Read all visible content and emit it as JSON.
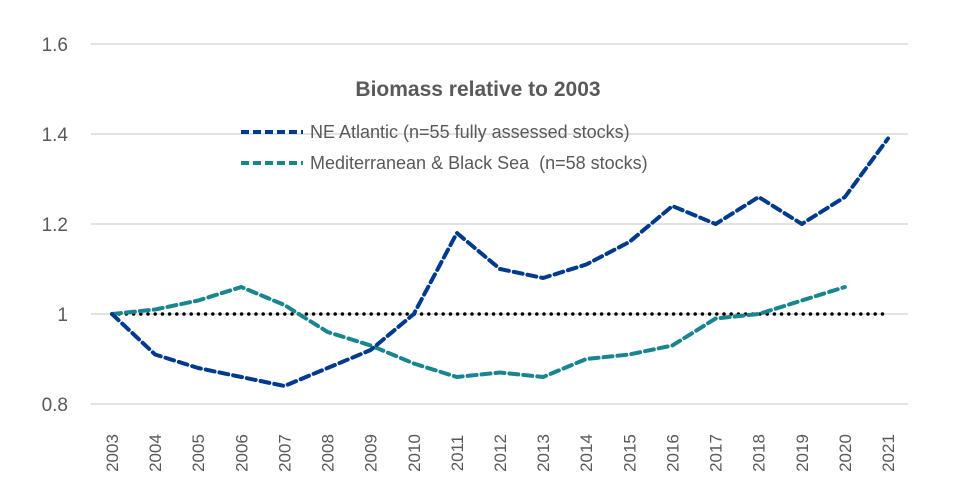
{
  "chart_data": {
    "type": "line",
    "title": "Biomass relative to 2003",
    "xlabel": "",
    "ylabel": "",
    "x": [
      "2003",
      "2004",
      "2005",
      "2006",
      "2007",
      "2008",
      "2009",
      "2010",
      "2011",
      "2012",
      "2013",
      "2014",
      "2015",
      "2016",
      "2017",
      "2018",
      "2019",
      "2020",
      "2021"
    ],
    "ylim": [
      0.8,
      1.6
    ],
    "yticks": [
      0.8,
      1,
      1.2,
      1.4,
      1.6
    ],
    "ytick_labels": [
      "0.8",
      "1",
      "1.2",
      "1.4",
      "1.6"
    ],
    "grid": true,
    "legend_position": "top-center",
    "series": [
      {
        "name": "NE Atlantic (n=55 fully assessed stocks)",
        "color": "#003A8C",
        "style": "dashed",
        "values": [
          1.0,
          0.91,
          0.88,
          0.86,
          0.84,
          0.88,
          0.92,
          1.0,
          1.18,
          1.1,
          1.08,
          1.11,
          1.16,
          1.24,
          1.2,
          1.26,
          1.2,
          1.26,
          1.39
        ]
      },
      {
        "name": "Mediterranean & Black Sea  (n=58 stocks)",
        "color": "#18858F",
        "style": "dashed",
        "values": [
          1.0,
          1.01,
          1.03,
          1.06,
          1.02,
          0.96,
          0.93,
          0.89,
          0.86,
          0.87,
          0.86,
          0.9,
          0.91,
          0.93,
          0.99,
          1.0,
          1.03,
          1.06,
          null
        ]
      },
      {
        "name": "Baseline",
        "color": "#000000",
        "style": "dotted",
        "in_legend": false,
        "values": [
          1,
          1,
          1,
          1,
          1,
          1,
          1,
          1,
          1,
          1,
          1,
          1,
          1,
          1,
          1,
          1,
          1,
          1,
          1
        ]
      }
    ]
  }
}
